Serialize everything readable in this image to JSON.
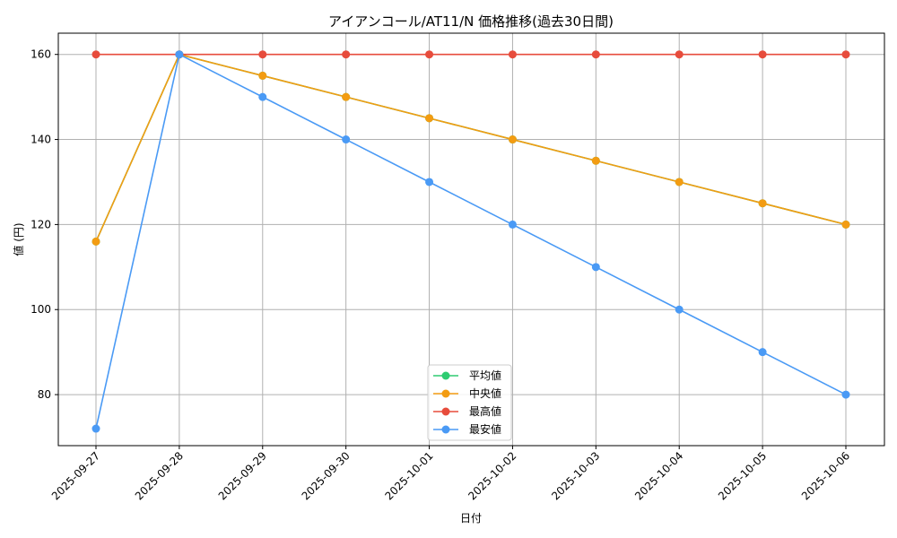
{
  "chart_data": {
    "type": "line",
    "title": "アイアンコール/AT11/N 価格推移(過去30日間)",
    "xlabel": "日付",
    "ylabel": "値 (円)",
    "categories": [
      "2025-09-27",
      "2025-09-28",
      "2025-09-29",
      "2025-09-30",
      "2025-10-01",
      "2025-10-02",
      "2025-10-03",
      "2025-10-04",
      "2025-10-05",
      "2025-10-06"
    ],
    "ylim": [
      68,
      165
    ],
    "yticks": [
      80,
      100,
      120,
      140,
      160
    ],
    "grid": true,
    "legend_position": "bottom-center",
    "series": [
      {
        "name": "平均値",
        "color": "#2ecc71",
        "values": [
          116,
          160,
          155,
          150,
          145,
          140,
          135,
          130,
          125,
          120
        ]
      },
      {
        "name": "中央値",
        "color": "#f39c12",
        "values": [
          116,
          160,
          155,
          150,
          145,
          140,
          135,
          130,
          125,
          120
        ]
      },
      {
        "name": "最高値",
        "color": "#e74c3c",
        "values": [
          160,
          160,
          160,
          160,
          160,
          160,
          160,
          160,
          160,
          160
        ]
      },
      {
        "name": "最安値",
        "color": "#4a9af5",
        "values": [
          72,
          160,
          150,
          140,
          130,
          120,
          110,
          100,
          90,
          80
        ]
      }
    ]
  }
}
